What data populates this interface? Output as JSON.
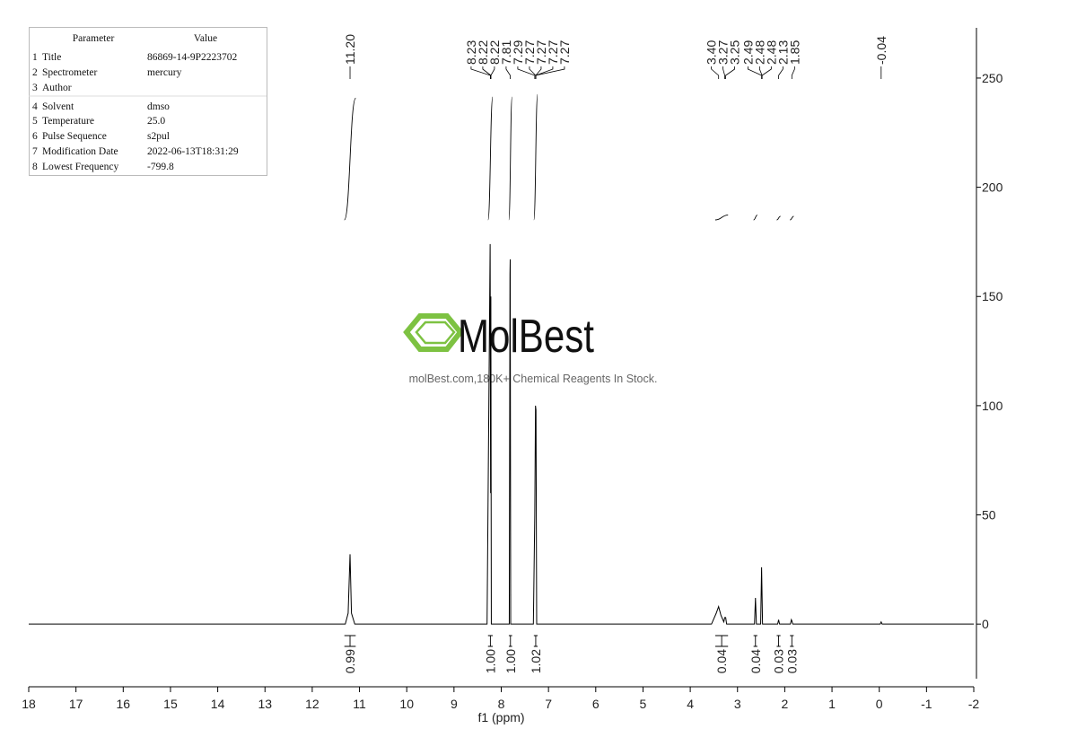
{
  "parameter_table": {
    "header": [
      "Parameter",
      "Value"
    ],
    "rows": [
      {
        "no": 1,
        "parameter": "Title",
        "value": "86869-14-9P2223702"
      },
      {
        "no": 2,
        "parameter": "Spectrometer",
        "value": "mercury"
      },
      {
        "no": 3,
        "parameter": "Author"
      },
      {
        "no": 4,
        "parameter": "Solvent",
        "value": "dmso"
      },
      {
        "no": 5,
        "parameter": "Temperature",
        "value": "25.0"
      },
      {
        "no": 6,
        "parameter": "Pulse Sequence",
        "value": "s2pul"
      },
      {
        "no": 7,
        "parameter": "Modification Date",
        "value": "2022-06-13T18:31:29"
      },
      {
        "no": 8,
        "parameter": "Lowest Frequency",
        "value": "-799.8"
      }
    ]
  },
  "watermark": {
    "logo": "MolBest",
    "tagline": "molBest.com,180K+ Chemical Reagents In Stock."
  },
  "chart_data": {
    "type": "line",
    "x_label": "f1 (ppm)",
    "color": "#000000",
    "x": [
      18,
      11.3,
      11.24,
      11.2,
      11.17,
      11.1,
      8.3,
      8.235,
      8.225,
      8.22,
      8.21,
      7.83,
      7.815,
      7.81,
      7.8,
      7.32,
      7.29,
      7.275,
      7.265,
      7.25,
      3.55,
      3.45,
      3.4,
      3.35,
      3.29,
      3.27,
      3.25,
      3.23,
      2.64,
      2.62,
      2.6,
      2.51,
      2.49,
      2.47,
      2.15,
      2.13,
      2.11,
      1.88,
      1.86,
      1.85,
      1.83,
      -0.02,
      -0.04,
      -0.06,
      -2
    ],
    "values": [
      0,
      0,
      5,
      32,
      5,
      0,
      0,
      174,
      60,
      150,
      0,
      0,
      160,
      167,
      0,
      0,
      50,
      100,
      98,
      0,
      0,
      5,
      8,
      4,
      1,
      3,
      3,
      0,
      0,
      12,
      0,
      0,
      26,
      0,
      0,
      2,
      0,
      0,
      2,
      1.5,
      0,
      0,
      1,
      0,
      0
    ],
    "xlim": [
      18,
      -2
    ],
    "xticks": [
      18,
      17,
      16,
      15,
      14,
      13,
      12,
      11,
      10,
      9,
      8,
      7,
      6,
      5,
      4,
      3,
      2,
      1,
      0,
      -1,
      -2
    ],
    "ylim": [
      -25,
      273
    ],
    "yticks": [
      0,
      50,
      100,
      150,
      200,
      250
    ],
    "peak_labels": [
      {
        "value": 11.2,
        "label": "11.20"
      },
      8.23,
      8.22,
      8.22,
      7.81,
      7.29,
      7.27,
      7.27,
      7.27,
      7.27,
      {
        "value": 3.4,
        "label": "3.40"
      },
      3.27,
      3.25,
      2.49,
      2.48,
      2.48,
      2.13,
      1.85,
      -0.04
    ],
    "integrals": {
      "ranges": [
        [
          11.32,
          11.08
        ],
        [
          8.28,
          8.18
        ],
        [
          7.84,
          7.77
        ],
        [
          7.31,
          7.23
        ],
        [
          3.47,
          3.2
        ],
        [
          2.66,
          2.58
        ],
        [
          2.17,
          2.09
        ],
        [
          1.89,
          1.81
        ]
      ],
      "values": [
        0.99,
        {
          "value": 1,
          "label": "1.00"
        },
        {
          "value": 1,
          "label": "1.00"
        },
        1.02,
        0.04,
        0.04,
        0.03,
        0.03
      ]
    }
  }
}
